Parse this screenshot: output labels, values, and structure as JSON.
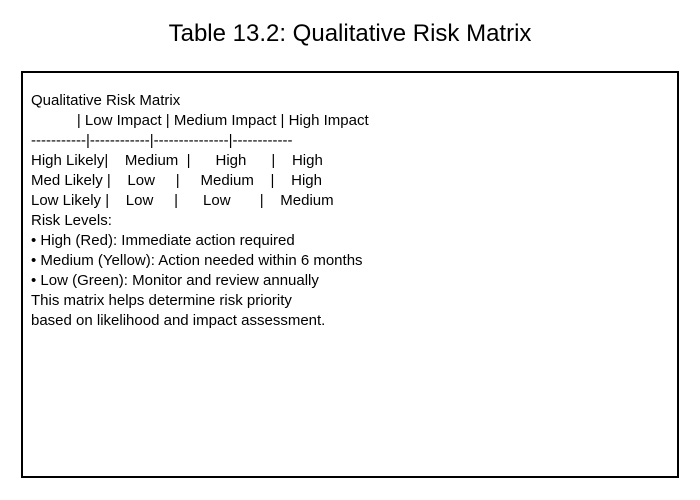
{
  "page": {
    "title": "Table 13.2: Qualitative Risk Matrix"
  },
  "box": {
    "lines": [
      "Qualitative Risk Matrix",
      "           | Low Impact | Medium Impact | High Impact",
      "-----------|------------|---------------|------------",
      "High Likely|    Medium  |      High      |    High",
      "Med Likely |    Low     |     Medium    |    High",
      "Low Likely |    Low     |      Low       |    Medium",
      "Risk Levels:",
      "• High (Red): Immediate action required",
      "• Medium (Yellow): Action needed within 6 months",
      "• Low (Green): Monitor and review annually",
      "This matrix helps determine risk priority",
      "based on likelihood and impact assessment."
    ]
  }
}
